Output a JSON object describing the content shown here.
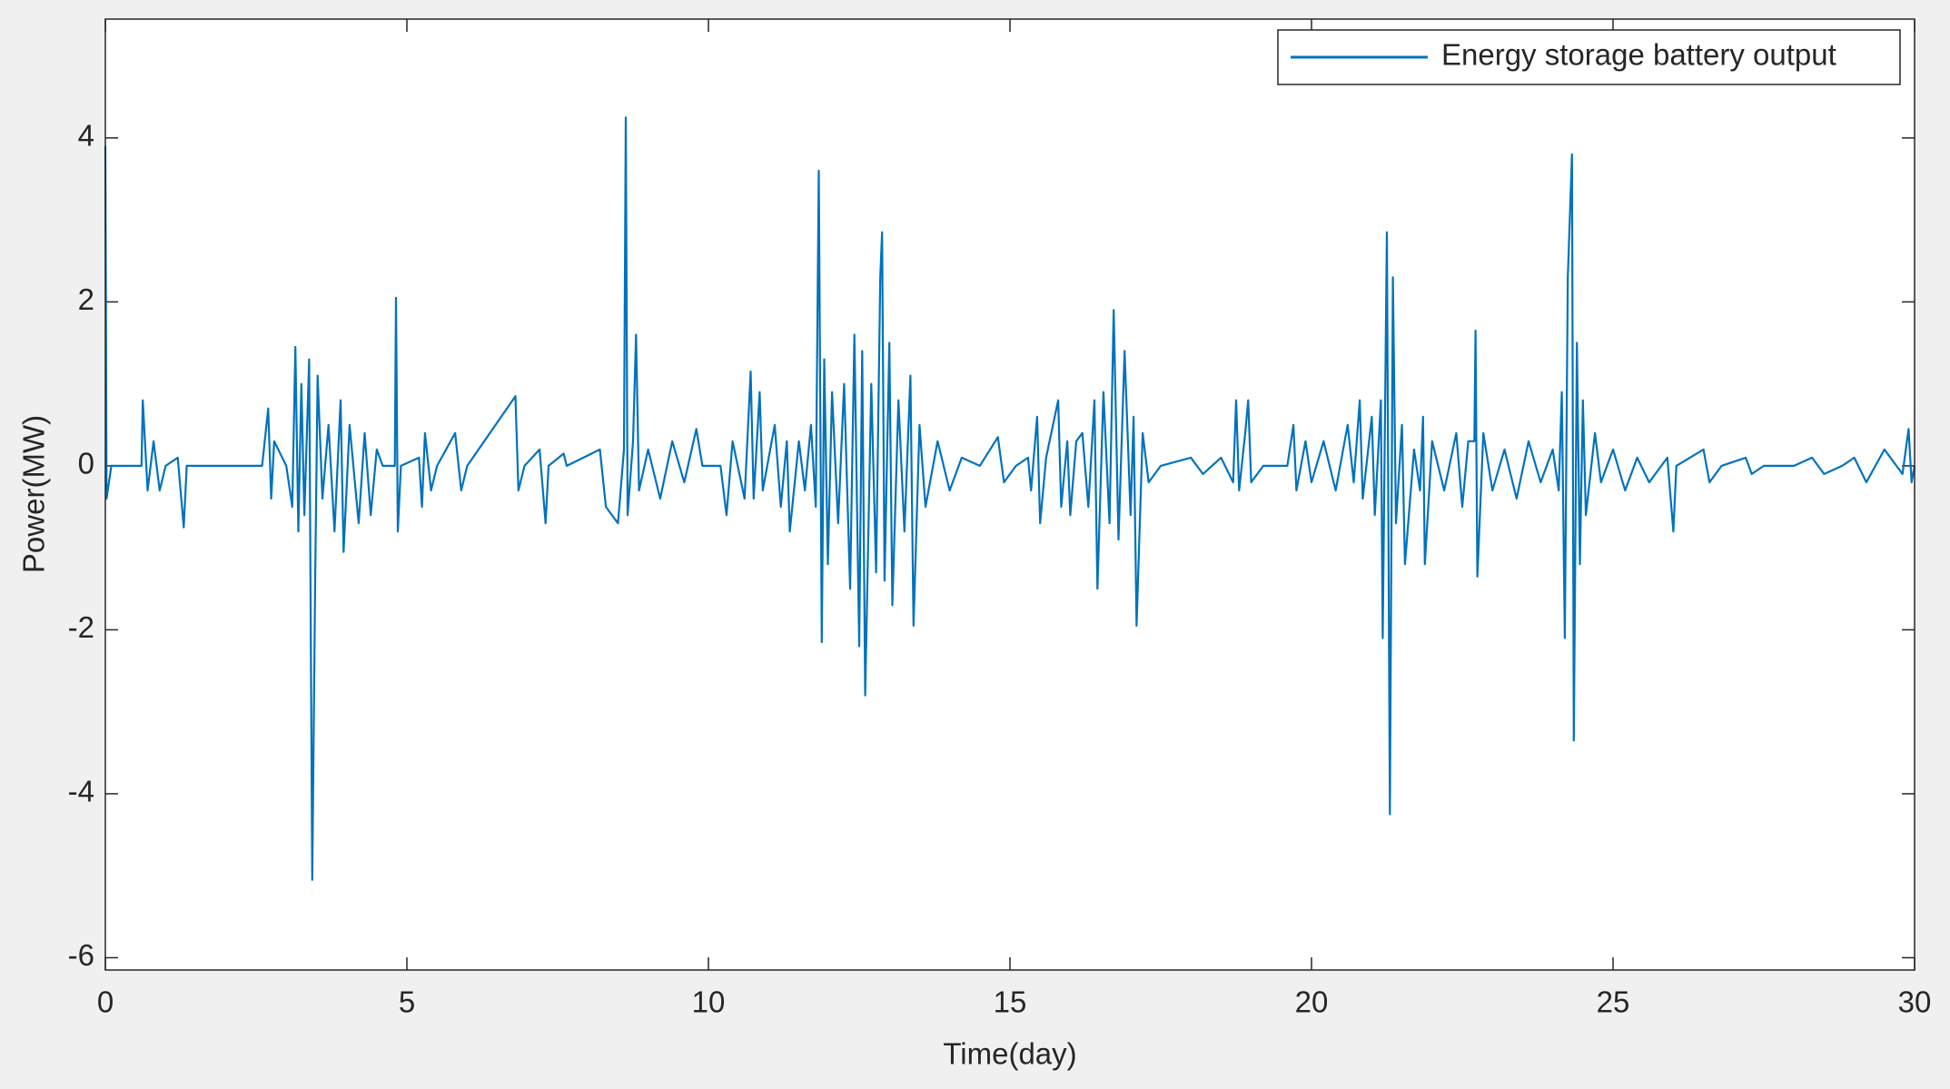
{
  "chart_data": {
    "type": "line",
    "xlabel": "Time(day)",
    "ylabel": "Power(MW)",
    "x": [
      0,
      0.02,
      0.1,
      0.6,
      0.62,
      0.7,
      0.8,
      0.9,
      1.0,
      1.2,
      1.3,
      1.35,
      2.6,
      2.7,
      2.75,
      2.8,
      3.0,
      3.1,
      3.15,
      3.2,
      3.25,
      3.3,
      3.38,
      3.43,
      3.48,
      3.52,
      3.6,
      3.7,
      3.8,
      3.9,
      3.95,
      4.05,
      4.2,
      4.3,
      4.4,
      4.5,
      4.6,
      4.8,
      4.82,
      4.85,
      4.9,
      5.2,
      5.25,
      5.3,
      5.4,
      5.5,
      5.8,
      5.9,
      6.0,
      6.8,
      6.85,
      6.95,
      7.2,
      7.3,
      7.35,
      7.6,
      7.65,
      8.2,
      8.3,
      8.5,
      8.6,
      8.63,
      8.66,
      8.75,
      8.8,
      8.85,
      9.0,
      9.2,
      9.4,
      9.6,
      9.8,
      9.9,
      10.2,
      10.3,
      10.4,
      10.6,
      10.7,
      10.75,
      10.85,
      10.9,
      11.1,
      11.2,
      11.3,
      11.35,
      11.5,
      11.6,
      11.7,
      11.78,
      11.83,
      11.88,
      11.92,
      11.98,
      12.05,
      12.15,
      12.25,
      12.35,
      12.42,
      12.5,
      12.55,
      12.6,
      12.7,
      12.78,
      12.85,
      12.88,
      12.92,
      13.0,
      13.05,
      13.15,
      13.25,
      13.35,
      13.4,
      13.5,
      13.6,
      13.8,
      14.0,
      14.2,
      14.5,
      14.8,
      14.9,
      15.1,
      15.3,
      15.35,
      15.45,
      15.5,
      15.6,
      15.8,
      15.85,
      15.95,
      16.0,
      16.1,
      16.2,
      16.3,
      16.4,
      16.45,
      16.55,
      16.65,
      16.72,
      16.8,
      16.9,
      17.0,
      17.05,
      17.1,
      17.2,
      17.3,
      17.5,
      18.0,
      18.2,
      18.5,
      18.7,
      18.75,
      18.8,
      18.9,
      18.95,
      19.0,
      19.2,
      19.6,
      19.7,
      19.75,
      19.9,
      20.0,
      20.2,
      20.4,
      20.6,
      20.7,
      20.8,
      20.85,
      21.0,
      21.05,
      21.15,
      21.18,
      21.25,
      21.3,
      21.35,
      21.4,
      21.5,
      21.55,
      21.7,
      21.8,
      21.85,
      21.88,
      22.0,
      22.2,
      22.4,
      22.5,
      22.6,
      22.7,
      22.72,
      22.75,
      22.85,
      23.0,
      23.2,
      23.4,
      23.6,
      23.8,
      24.0,
      24.1,
      24.15,
      24.2,
      24.25,
      24.32,
      24.35,
      24.4,
      24.45,
      24.5,
      24.55,
      24.7,
      24.8,
      25.0,
      25.2,
      25.4,
      25.6,
      25.9,
      26.0,
      26.05,
      26.5,
      26.6,
      26.8,
      27.2,
      27.3,
      27.5,
      28.0,
      28.3,
      28.5,
      28.8,
      29.0,
      29.2,
      29.5,
      29.8,
      29.9,
      29.95,
      30
    ],
    "series": [
      {
        "name": "Energy storage battery output",
        "color": "#0072bd",
        "values": [
          3.9,
          -0.4,
          0,
          0,
          0.8,
          -0.3,
          0.3,
          -0.3,
          0,
          0.1,
          -0.75,
          0,
          0,
          0.7,
          -0.4,
          0.3,
          0,
          -0.5,
          1.45,
          -0.8,
          1.0,
          -0.6,
          1.3,
          -5.05,
          -1.3,
          1.1,
          -0.4,
          0.5,
          -0.8,
          0.8,
          -1.05,
          0.5,
          -0.7,
          0.4,
          -0.6,
          0.2,
          0,
          0,
          2.05,
          -0.8,
          0,
          0.1,
          -0.5,
          0.4,
          -0.3,
          0,
          0.4,
          -0.3,
          0,
          0.85,
          -0.3,
          0,
          0.2,
          -0.7,
          0,
          0.15,
          0,
          0.2,
          -0.5,
          -0.7,
          0.2,
          4.25,
          -0.6,
          0.3,
          1.6,
          -0.3,
          0.2,
          -0.4,
          0.3,
          -0.2,
          0.45,
          0,
          0,
          -0.6,
          0.3,
          -0.4,
          1.15,
          -0.4,
          0.9,
          -0.3,
          0.5,
          -0.5,
          0.3,
          -0.8,
          0.3,
          -0.3,
          0.5,
          -0.5,
          3.6,
          -2.15,
          1.3,
          -1.2,
          0.9,
          -0.7,
          1.0,
          -1.5,
          1.6,
          -2.2,
          1.4,
          -2.8,
          1.0,
          -1.3,
          2.3,
          2.85,
          -1.4,
          1.5,
          -1.7,
          0.8,
          -0.8,
          1.1,
          -1.95,
          0.5,
          -0.5,
          0.3,
          -0.3,
          0.1,
          0,
          0.35,
          -0.2,
          0,
          0.1,
          -0.3,
          0.6,
          -0.7,
          0.1,
          0.8,
          -0.5,
          0.3,
          -0.6,
          0.3,
          0.4,
          -0.5,
          0.8,
          -1.5,
          0.9,
          -0.7,
          1.9,
          -0.9,
          1.4,
          -0.6,
          0.6,
          -1.95,
          0.4,
          -0.2,
          0,
          0.1,
          -0.1,
          0.1,
          -0.2,
          0.8,
          -0.3,
          0.4,
          0.8,
          -0.2,
          0,
          0,
          0.5,
          -0.3,
          0.3,
          -0.2,
          0.3,
          -0.3,
          0.5,
          -0.2,
          0.8,
          -0.4,
          0.6,
          -0.6,
          0.8,
          -2.1,
          2.85,
          -4.25,
          2.3,
          -0.7,
          0.5,
          -1.2,
          0.2,
          -0.3,
          0.6,
          -1.2,
          0.3,
          -0.3,
          0.4,
          -0.5,
          0.3,
          0.3,
          1.65,
          -1.35,
          0.4,
          -0.3,
          0.2,
          -0.4,
          0.3,
          -0.2,
          0.2,
          -0.3,
          0.9,
          -2.1,
          2.3,
          3.8,
          -3.35,
          1.5,
          -1.2,
          0.8,
          -0.6,
          0.4,
          -0.2,
          0.2,
          -0.3,
          0.1,
          -0.2,
          0.1,
          -0.8,
          0,
          0.2,
          -0.2,
          0,
          0.1,
          -0.1,
          0,
          0,
          0.1,
          -0.1,
          0,
          0.1,
          -0.2,
          0.2,
          -0.1,
          0.45,
          -0.2,
          0
        ]
      }
    ],
    "xlim": [
      0,
      30
    ],
    "xticks": [
      0,
      5,
      10,
      15,
      20,
      25,
      30
    ],
    "ylim": [
      -6.15,
      5.45
    ],
    "yticks": [
      -6,
      -4,
      -2,
      0,
      2,
      4
    ],
    "grid": false,
    "legend": "northeast"
  }
}
